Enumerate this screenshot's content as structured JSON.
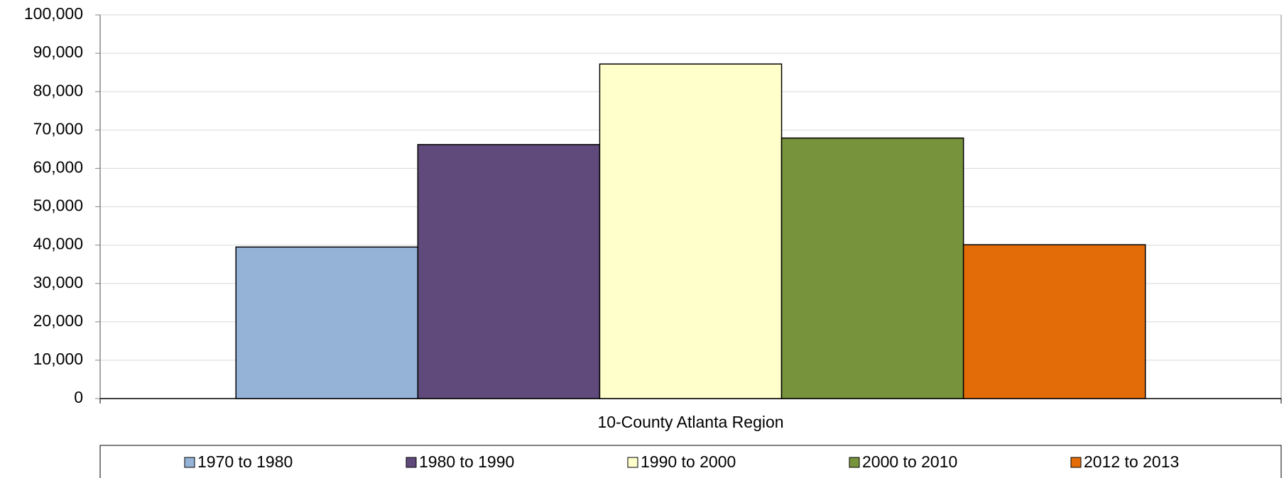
{
  "chart_data": {
    "type": "bar",
    "categories": [
      "10-County Atlanta Region"
    ],
    "series": [
      {
        "name": "1970 to 1980",
        "color": "#95b3d7",
        "values": [
          39500
        ]
      },
      {
        "name": "1980 to 1990",
        "color": "#604a7b",
        "values": [
          66200
        ]
      },
      {
        "name": "1990 to 2000",
        "color": "#ffffcc",
        "values": [
          87200
        ]
      },
      {
        "name": "2000 to 2010",
        "color": "#77933c",
        "values": [
          67900
        ]
      },
      {
        "name": "2012 to 2013",
        "color": "#e36c09",
        "values": [
          40100
        ]
      }
    ],
    "ylim": [
      0,
      100000
    ],
    "yticks": [
      0,
      {
        "value": 10000,
        "label": "10,000"
      },
      {
        "value": 20000,
        "label": "20,000"
      },
      {
        "value": 30000,
        "label": "30,000"
      },
      {
        "value": 40000,
        "label": "40,000"
      },
      {
        "value": 50000,
        "label": "50,000"
      },
      {
        "value": 60000,
        "label": "60,000"
      },
      {
        "value": 70000,
        "label": "70,000"
      },
      {
        "value": 80000,
        "label": "80,000"
      },
      {
        "value": 90000,
        "label": "90,000"
      },
      {
        "value": 100000,
        "label": "100,000"
      }
    ],
    "grid": true,
    "legend": "bottom"
  }
}
